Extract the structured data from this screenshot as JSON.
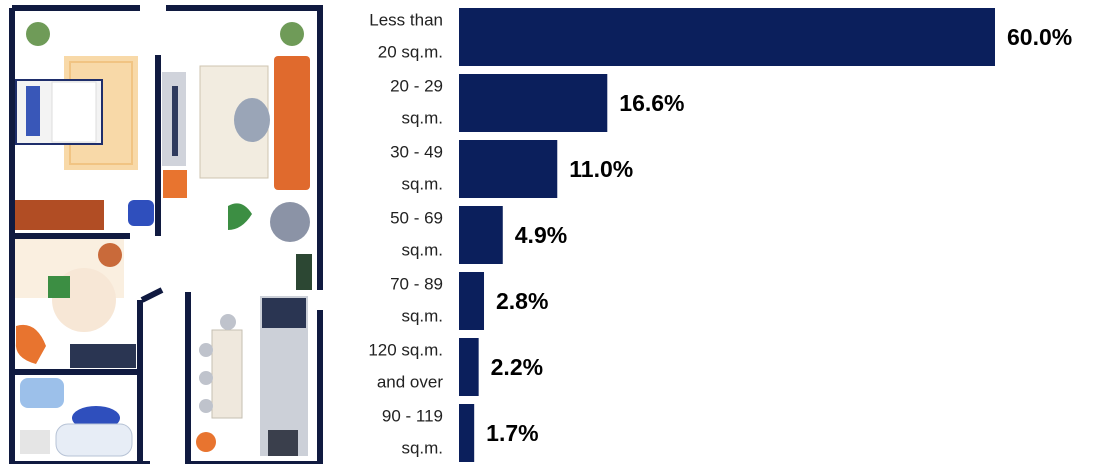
{
  "chart_data": {
    "type": "bar",
    "orientation": "horizontal",
    "categories": [
      [
        "Less than",
        "20 sq.m."
      ],
      [
        "20 - 29",
        "sq.m."
      ],
      [
        "30 - 49",
        "sq.m."
      ],
      [
        "50 - 69",
        "sq.m."
      ],
      [
        "70 - 89",
        "sq.m."
      ],
      [
        "120 sq.m.",
        "and over"
      ],
      [
        "90 - 119",
        "sq.m."
      ]
    ],
    "values": [
      60.0,
      16.6,
      11.0,
      4.9,
      2.8,
      2.2,
      1.7
    ],
    "value_labels": [
      "60.0%",
      "16.6%",
      "11.0%",
      "4.9%",
      "2.8%",
      "2.2%",
      "1.7%"
    ],
    "color": "#0b1f5c"
  }
}
